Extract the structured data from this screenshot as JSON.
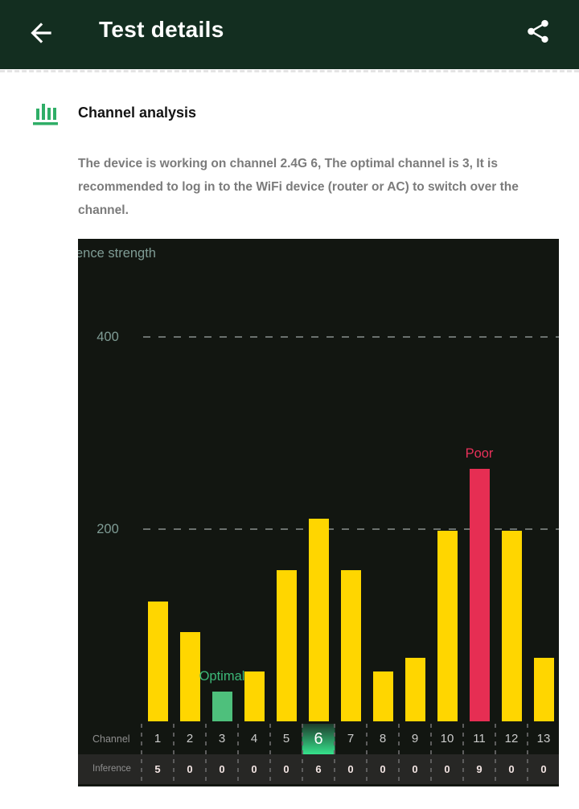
{
  "header": {
    "title": "Test details",
    "background": "#132e20"
  },
  "section": {
    "title": "Channel analysis",
    "description": "The device is working on channel 2.4G 6, The optimal channel is 3, It is recommended to log in to the WiFi device (router or AC) to switch over the channel."
  },
  "chart_data": {
    "type": "bar",
    "ylabel_visible": "ence strength",
    "categories": [
      "1",
      "2",
      "3",
      "4",
      "5",
      "6",
      "7",
      "8",
      "9",
      "10",
      "11",
      "12",
      "13"
    ],
    "values": [
      125,
      93,
      31,
      52,
      157,
      211,
      157,
      52,
      66,
      198,
      263,
      198,
      66
    ],
    "yticks": [
      200,
      400
    ],
    "ylim": [
      0,
      500
    ],
    "grid": "horizontal-dashed",
    "legend": "none",
    "channel_row_label": "Channel",
    "inference_row_label": "Inference",
    "inference_values": [
      "5",
      "0",
      "0",
      "0",
      "0",
      "6",
      "0",
      "0",
      "0",
      "0",
      "9",
      "0",
      "0"
    ],
    "current_channel": "6",
    "optimal_channel": "3",
    "poor_channel": "11",
    "annotations": [
      {
        "text": "Optimal",
        "channel": "3",
        "color": "#3cb878"
      },
      {
        "text": "Poor",
        "channel": "11",
        "color": "#e8315a"
      }
    ],
    "colors": {
      "background": "#121611",
      "bar": "#ffd600",
      "optimal_bar": "#4ec07c",
      "poor_bar": "#e62e53",
      "axis_text": "#7f9c95",
      "channel_text": "#cbcbcb",
      "highlight_gradient_top": "#1d3b2c",
      "highlight_gradient_bottom": "#36e28c",
      "inference_row_bg": "#272725"
    }
  }
}
